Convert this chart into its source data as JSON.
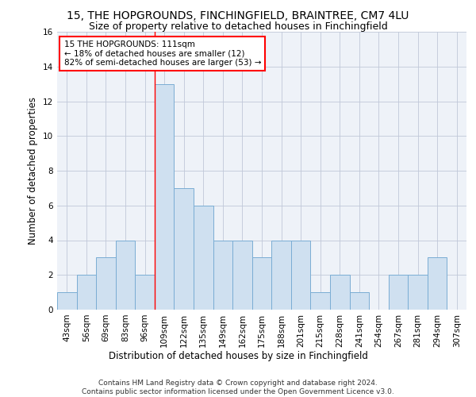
{
  "title_line1": "15, THE HOPGROUNDS, FINCHINGFIELD, BRAINTREE, CM7 4LU",
  "title_line2": "Size of property relative to detached houses in Finchingfield",
  "xlabel": "Distribution of detached houses by size in Finchingfield",
  "ylabel": "Number of detached properties",
  "bar_labels": [
    "43sqm",
    "56sqm",
    "69sqm",
    "83sqm",
    "96sqm",
    "109sqm",
    "122sqm",
    "135sqm",
    "149sqm",
    "162sqm",
    "175sqm",
    "188sqm",
    "201sqm",
    "215sqm",
    "228sqm",
    "241sqm",
    "254sqm",
    "267sqm",
    "281sqm",
    "294sqm",
    "307sqm"
  ],
  "bar_values": [
    1,
    2,
    3,
    4,
    2,
    13,
    7,
    6,
    4,
    4,
    3,
    4,
    4,
    1,
    2,
    1,
    0,
    2,
    2,
    3,
    0
  ],
  "bar_color": "#cfe0f0",
  "bar_edge_color": "#7aadd4",
  "highlight_index": 5,
  "annotation_text": "15 THE HOPGROUNDS: 111sqm\n← 18% of detached houses are smaller (12)\n82% of semi-detached houses are larger (53) →",
  "annotation_box_color": "white",
  "annotation_box_edge_color": "red",
  "vline_color": "red",
  "ylim": [
    0,
    16
  ],
  "yticks": [
    0,
    2,
    4,
    6,
    8,
    10,
    12,
    14,
    16
  ],
  "footnote": "Contains HM Land Registry data © Crown copyright and database right 2024.\nContains public sector information licensed under the Open Government Licence v3.0.",
  "title_fontsize": 10,
  "subtitle_fontsize": 9,
  "axis_label_fontsize": 8.5,
  "tick_fontsize": 7.5,
  "annotation_fontsize": 7.5,
  "footnote_fontsize": 6.5
}
